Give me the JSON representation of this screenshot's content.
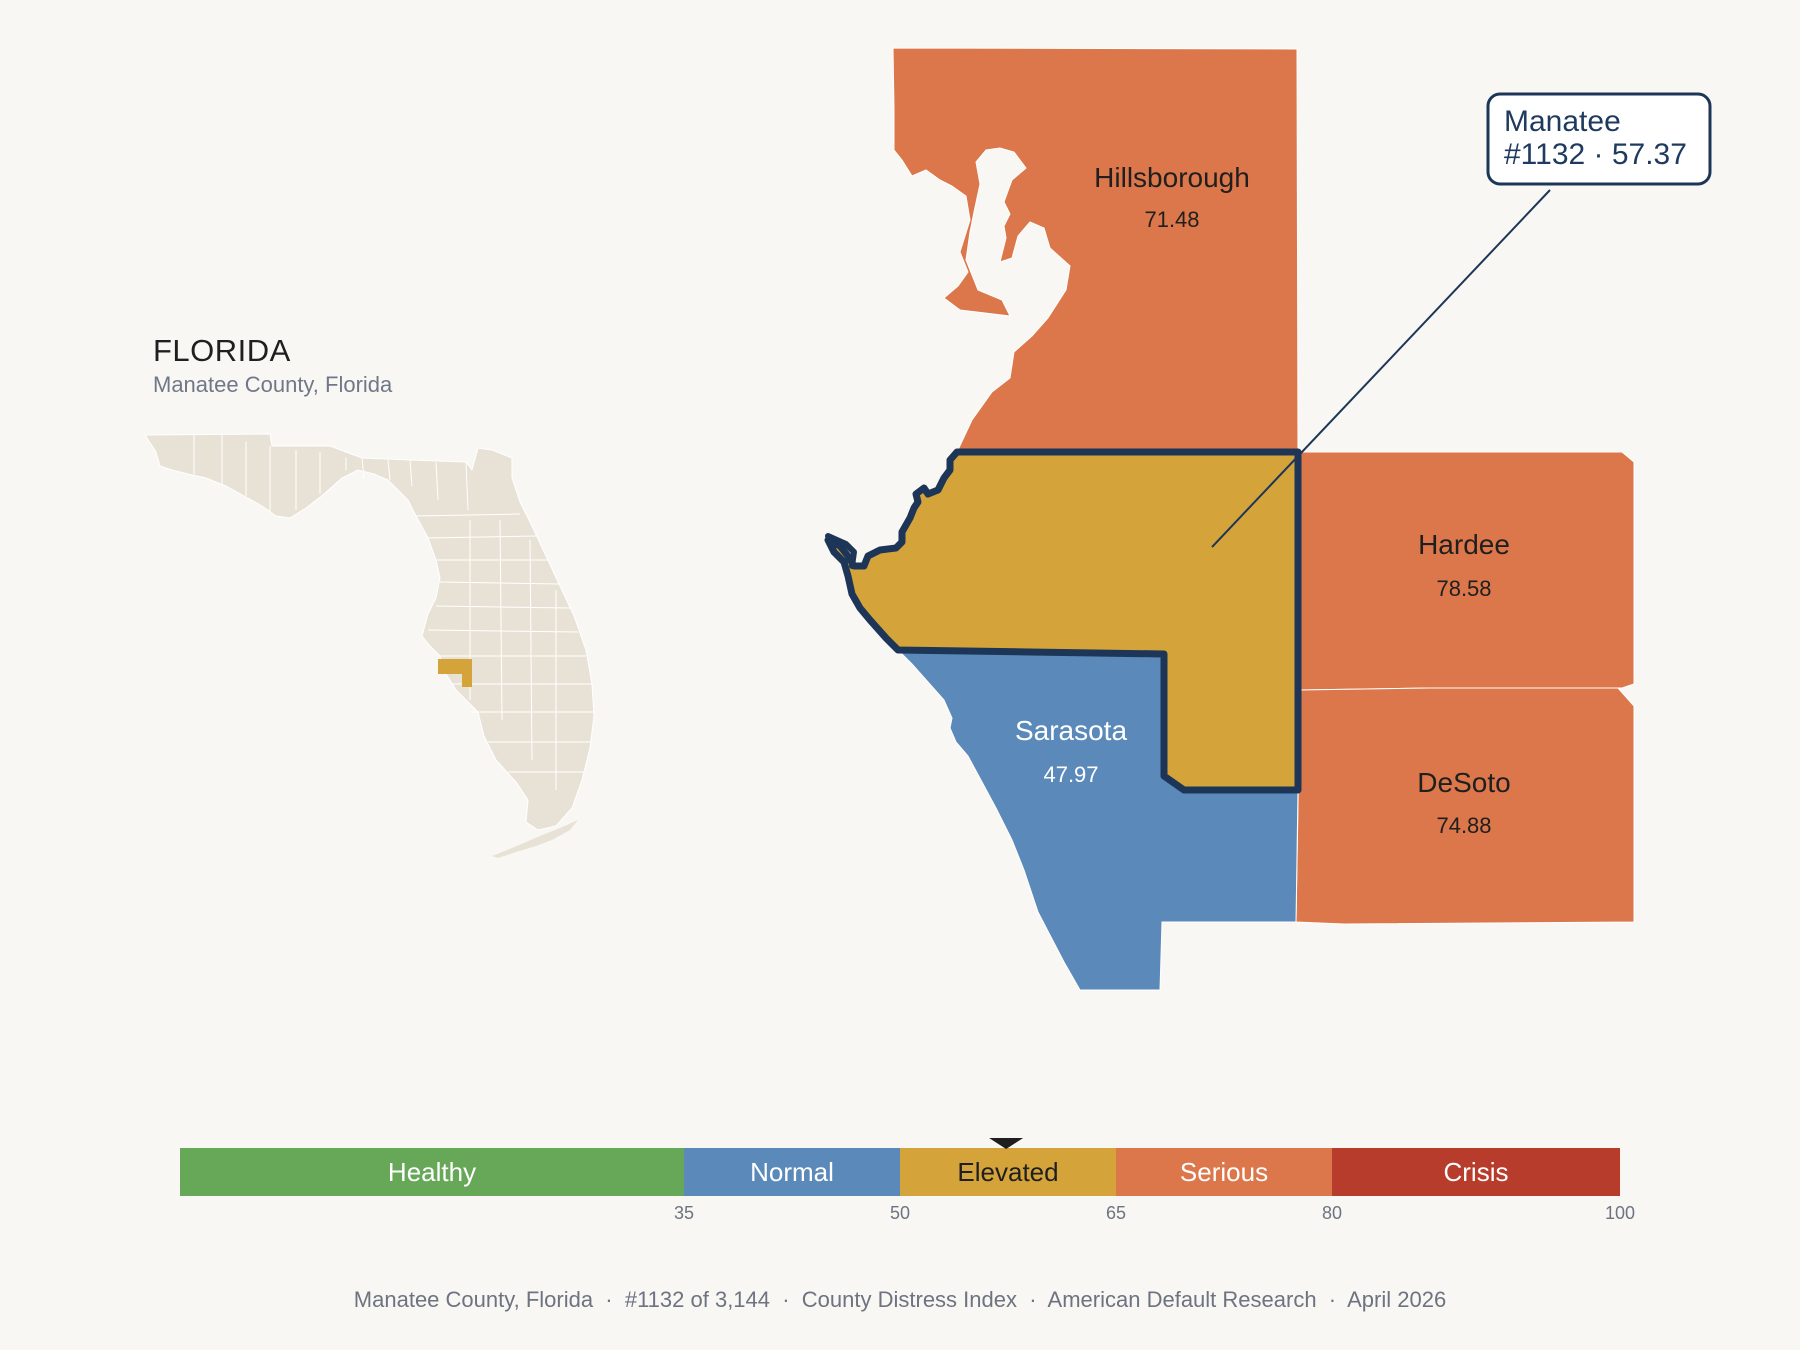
{
  "inset": {
    "title": "FLORIDA",
    "subtitle": "Manatee County, Florida"
  },
  "colors": {
    "background": "#f9f7f3",
    "state_fill": "#e8e2d6",
    "healthy": "#66a758",
    "normal": "#5b8aba",
    "elevated": "#d4a43b",
    "serious": "#db774a",
    "crisis": "#b83c2c",
    "highlight_outline": "#1d3658"
  },
  "counties": [
    {
      "name": "Hillsborough",
      "value": "71.48",
      "category": "serious"
    },
    {
      "name": "Manatee",
      "value": "57.37",
      "category": "elevated",
      "focus": true
    },
    {
      "name": "Hardee",
      "value": "78.58",
      "category": "serious"
    },
    {
      "name": "Sarasota",
      "value": "47.97",
      "category": "normal"
    },
    {
      "name": "DeSoto",
      "value": "74.88",
      "category": "serious"
    }
  ],
  "callout": {
    "line1": "Manatee",
    "line2": "#1132 · 57.37"
  },
  "legend": {
    "min": 0,
    "max": 100,
    "marker_value": 57.37,
    "bands": [
      {
        "label": "Healthy",
        "from": 0,
        "to": 35,
        "color": "#66a758"
      },
      {
        "label": "Normal",
        "from": 35,
        "to": 50,
        "color": "#5b8aba"
      },
      {
        "label": "Elevated",
        "from": 50,
        "to": 65,
        "color": "#d4a43b"
      },
      {
        "label": "Serious",
        "from": 65,
        "to": 80,
        "color": "#db774a"
      },
      {
        "label": "Crisis",
        "from": 80,
        "to": 100,
        "color": "#b83c2c"
      }
    ],
    "ticks": [
      "35",
      "50",
      "65",
      "80",
      "100"
    ]
  },
  "footer": {
    "text": "Manatee County, Florida  ·  #1132 of 3,144  ·  County Distress Index  ·  American Default Research  ·  April 2026"
  }
}
